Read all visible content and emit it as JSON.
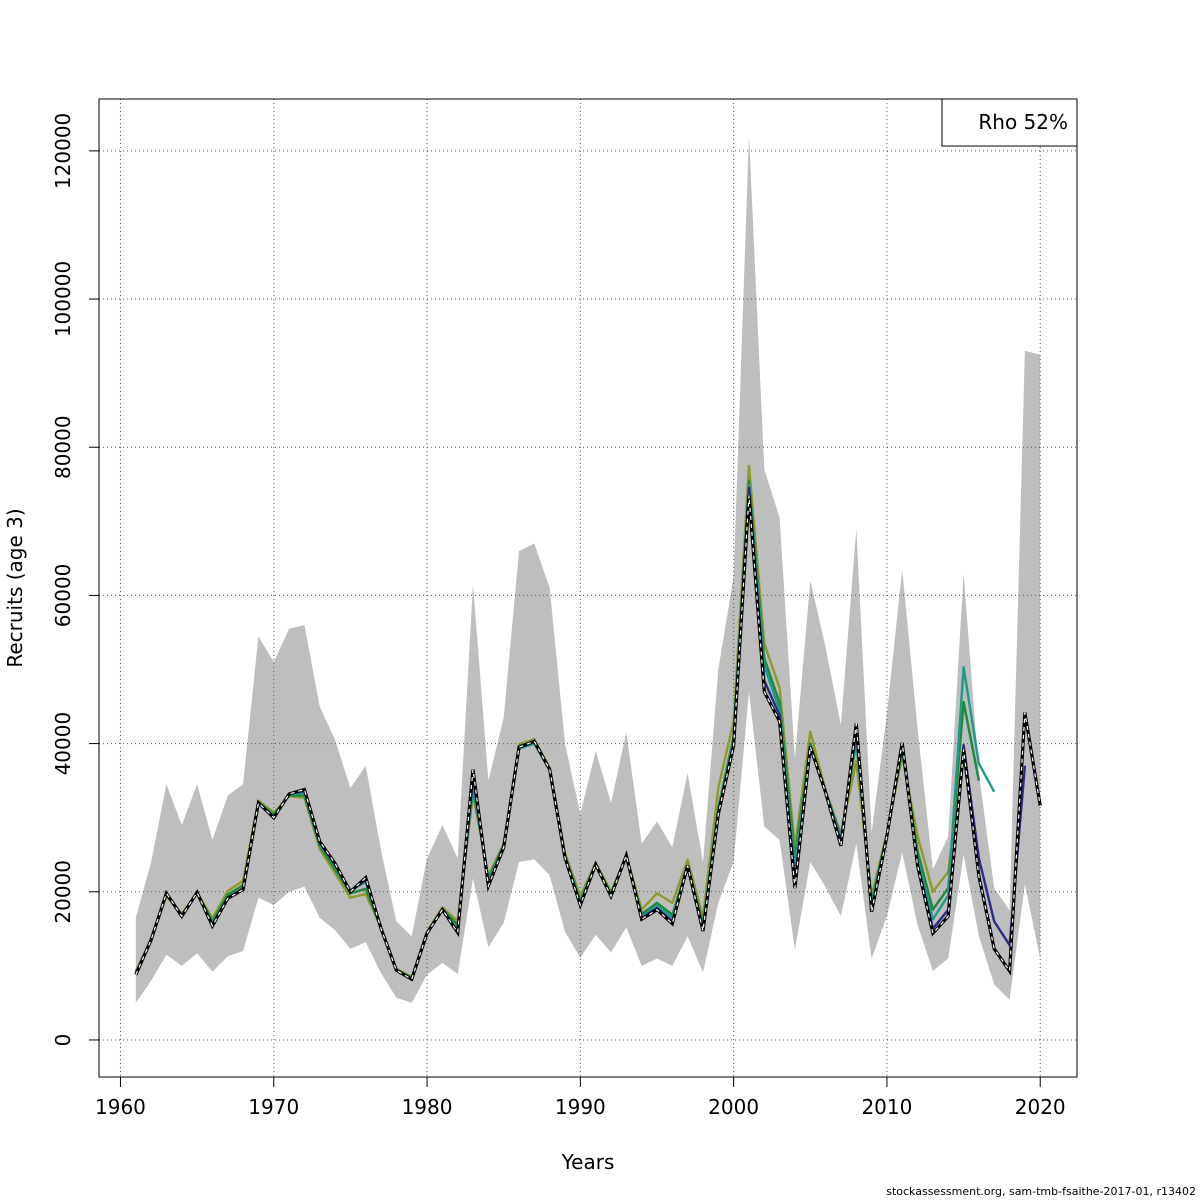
{
  "chart_data": {
    "type": "line",
    "xlabel": "Years",
    "ylabel": "Recruits (age 3)",
    "xlim": [
      1958.6,
      2022.4
    ],
    "ylim": [
      -5000,
      127000
    ],
    "x_ticks": [
      1960,
      1970,
      1980,
      1990,
      2000,
      2010,
      2020
    ],
    "y_ticks": [
      0,
      20000,
      40000,
      60000,
      80000,
      100000,
      120000
    ],
    "grid": true,
    "legend": {
      "position": "top-right",
      "text": "Rho 52%"
    },
    "colors": {
      "band": "#bebebe",
      "band_highlight": "#9ec3e0",
      "final": "#000000",
      "peel1": "#2a2a8c",
      "peel2": "#1e9a8a",
      "peel3": "#1b8a3a",
      "peel4": "#8f9a2a"
    },
    "confidence_band": {
      "x": [
        1961,
        1962,
        1963,
        1964,
        1965,
        1966,
        1967,
        1968,
        1969,
        1970,
        1971,
        1972,
        1973,
        1974,
        1975,
        1976,
        1977,
        1978,
        1979,
        1980,
        1981,
        1982,
        1983,
        1984,
        1985,
        1986,
        1987,
        1988,
        1989,
        1990,
        1991,
        1992,
        1993,
        1994,
        1995,
        1996,
        1997,
        1998,
        1999,
        2000,
        2001,
        2002,
        2003,
        2004,
        2005,
        2006,
        2007,
        2008,
        2009,
        2010,
        2011,
        2012,
        2013,
        2014,
        2015,
        2016,
        2017,
        2018,
        2019,
        2020
      ],
      "upper": [
        16500,
        24000,
        34500,
        29000,
        34500,
        27000,
        33000,
        34500,
        54500,
        51000,
        55500,
        56000,
        45000,
        40500,
        34000,
        37000,
        25500,
        16000,
        14000,
        24500,
        29000,
        24500,
        61500,
        35000,
        43500,
        66000,
        67000,
        61000,
        40000,
        30500,
        39000,
        32000,
        41500,
        26500,
        29500,
        26000,
        36000,
        24000,
        50000,
        62500,
        122000,
        77000,
        70500,
        38000,
        62000,
        53000,
        42500,
        69000,
        28000,
        44000,
        63500,
        42000,
        23000,
        27500,
        63000,
        36000,
        20500,
        17500,
        93000,
        92500
      ],
      "lower": [
        5000,
        8000,
        11500,
        10000,
        11700,
        9200,
        11300,
        12000,
        19200,
        18200,
        20000,
        20700,
        16500,
        14800,
        12300,
        13200,
        9000,
        5700,
        5000,
        8800,
        10400,
        8900,
        21800,
        12500,
        15800,
        24000,
        24400,
        22200,
        14600,
        11100,
        14200,
        11800,
        15200,
        10000,
        11000,
        10000,
        14000,
        9100,
        18500,
        24000,
        47000,
        28800,
        27000,
        12200,
        24000,
        20600,
        16700,
        26500,
        11000,
        16700,
        25300,
        15500,
        9300,
        11000,
        25000,
        14000,
        7500,
        5400,
        21000,
        11000
      ]
    },
    "series": [
      {
        "name": "",
        "style": "final",
        "x": [
          1961,
          1962,
          1963,
          1964,
          1965,
          1966,
          1967,
          1968,
          1969,
          1970,
          1971,
          1972,
          1973,
          1974,
          1975,
          1976,
          1977,
          1978,
          1979,
          1980,
          1981,
          1982,
          1983,
          1984,
          1985,
          1986,
          1987,
          1988,
          1989,
          1990,
          1991,
          1992,
          1993,
          1994,
          1995,
          1996,
          1997,
          1998,
          1999,
          2000,
          2001,
          2002,
          2003,
          2004,
          2005,
          2006,
          2007,
          2008,
          2009,
          2010,
          2011,
          2012,
          2013,
          2014,
          2015,
          2016,
          2017,
          2018,
          2019,
          2020
        ],
        "values": [
          8800,
          13500,
          19800,
          16700,
          19900,
          15400,
          19100,
          20300,
          32000,
          30000,
          33200,
          33800,
          26800,
          23800,
          20000,
          21900,
          15000,
          9400,
          8200,
          14400,
          17600,
          14500,
          36500,
          20800,
          26000,
          39500,
          40300,
          36500,
          24600,
          18200,
          23700,
          19400,
          24900,
          16300,
          17600,
          15700,
          23500,
          14700,
          30500,
          39700,
          73500,
          47000,
          43000,
          20500,
          39600,
          33400,
          26200,
          42700,
          17300,
          27500,
          40100,
          23500,
          14400,
          16700,
          39200,
          22100,
          12300,
          9300,
          44200,
          31600
        ]
      },
      {
        "name": "",
        "style": "peel1",
        "x": [
          1961,
          1962,
          1963,
          1964,
          1965,
          1966,
          1967,
          1968,
          1969,
          1970,
          1971,
          1972,
          1973,
          1974,
          1975,
          1976,
          1977,
          1978,
          1979,
          1980,
          1981,
          1982,
          1983,
          1984,
          1985,
          1986,
          1987,
          1988,
          1989,
          1990,
          1991,
          1992,
          1993,
          1994,
          1995,
          1996,
          1997,
          1998,
          1999,
          2000,
          2001,
          2002,
          2003,
          2004,
          2005,
          2006,
          2007,
          2008,
          2009,
          2010,
          2011,
          2012,
          2013,
          2014,
          2015,
          2016,
          2017,
          2018,
          2019
        ],
        "values": [
          8900,
          13500,
          19700,
          16700,
          19900,
          15600,
          19200,
          20400,
          32000,
          30100,
          33200,
          33600,
          26600,
          23600,
          20100,
          21600,
          15000,
          9400,
          8200,
          14400,
          17500,
          14600,
          35500,
          21000,
          26100,
          39600,
          40200,
          36500,
          24700,
          18300,
          23700,
          19500,
          24900,
          16500,
          17800,
          16000,
          23400,
          14900,
          30800,
          40000,
          74500,
          48500,
          43800,
          21500,
          39400,
          33500,
          26800,
          41800,
          17600,
          27600,
          39800,
          23800,
          15000,
          17600,
          39800,
          24500,
          16000,
          12800,
          37000
        ]
      },
      {
        "name": "",
        "style": "peel2",
        "x": [
          1961,
          1962,
          1963,
          1964,
          1965,
          1966,
          1967,
          1968,
          1969,
          1970,
          1971,
          1972,
          1973,
          1974,
          1975,
          1976,
          1977,
          1978,
          1979,
          1980,
          1981,
          1982,
          1983,
          1984,
          1985,
          1986,
          1987,
          1988,
          1989,
          1990,
          1991,
          1992,
          1993,
          1994,
          1995,
          1996,
          1997,
          1998,
          1999,
          2000,
          2001,
          2002,
          2003,
          2004,
          2005,
          2006,
          2007,
          2008,
          2009,
          2010,
          2011,
          2012,
          2013,
          2014,
          2015,
          2016,
          2017
        ],
        "values": [
          9000,
          13600,
          19700,
          16800,
          19900,
          15700,
          19300,
          20500,
          32100,
          30200,
          33100,
          33400,
          26400,
          23400,
          20200,
          21300,
          15100,
          9400,
          8300,
          14500,
          17600,
          15000,
          34500,
          21500,
          26200,
          39300,
          40000,
          36400,
          24800,
          18500,
          23700,
          19600,
          24900,
          16700,
          18100,
          16500,
          23300,
          15300,
          31000,
          40500,
          75000,
          50500,
          44500,
          23500,
          39300,
          33500,
          27200,
          40700,
          18200,
          27700,
          39500,
          24500,
          16300,
          19500,
          50300,
          37300,
          33500
        ]
      },
      {
        "name": "",
        "style": "peel3",
        "x": [
          1961,
          1962,
          1963,
          1964,
          1965,
          1966,
          1967,
          1968,
          1969,
          1970,
          1971,
          1972,
          1973,
          1974,
          1975,
          1976,
          1977,
          1978,
          1979,
          1980,
          1981,
          1982,
          1983,
          1984,
          1985,
          1986,
          1987,
          1988,
          1989,
          1990,
          1991,
          1992,
          1993,
          1994,
          1995,
          1996,
          1997,
          1998,
          1999,
          2000,
          2001,
          2002,
          2003,
          2004,
          2005,
          2006,
          2007,
          2008,
          2009,
          2010,
          2011,
          2012,
          2013,
          2014,
          2015,
          2016
        ],
        "values": [
          9100,
          13600,
          19600,
          16900,
          19900,
          16000,
          19600,
          20900,
          32100,
          30400,
          33000,
          33000,
          26200,
          23000,
          19800,
          20400,
          15100,
          9500,
          8400,
          14500,
          17700,
          15500,
          33900,
          21800,
          26300,
          39700,
          40200,
          36500,
          24900,
          18800,
          23800,
          19800,
          24900,
          17000,
          18500,
          16900,
          23500,
          15800,
          31300,
          41000,
          75500,
          51500,
          45500,
          24500,
          40000,
          33600,
          27500,
          40200,
          18600,
          27800,
          39000,
          25500,
          17600,
          20500,
          45600,
          35000
        ]
      },
      {
        "name": "",
        "style": "peel4",
        "x": [
          1961,
          1962,
          1963,
          1964,
          1965,
          1966,
          1967,
          1968,
          1969,
          1970,
          1971,
          1972,
          1973,
          1974,
          1975,
          1976,
          1977,
          1978,
          1979,
          1980,
          1981,
          1982,
          1983,
          1984,
          1985,
          1986,
          1987,
          1988,
          1989,
          1990,
          1991,
          1992,
          1993,
          1994,
          1995,
          1996,
          1997,
          1998,
          1999,
          2000,
          2001,
          2002,
          2003,
          2004,
          2005,
          2006,
          2007,
          2008,
          2009,
          2010,
          2011,
          2012,
          2013,
          2014,
          2015
        ],
        "values": [
          9300,
          13500,
          19400,
          17000,
          19900,
          16400,
          20100,
          21500,
          32300,
          30700,
          32900,
          32700,
          25800,
          22500,
          19200,
          19700,
          15200,
          9600,
          8500,
          14600,
          17900,
          16000,
          33200,
          22200,
          26500,
          39900,
          40600,
          36700,
          25200,
          19400,
          23900,
          20000,
          24900,
          17600,
          19800,
          18500,
          24300,
          16600,
          34000,
          43000,
          77500,
          53500,
          47500,
          26000,
          41600,
          33700,
          27800,
          37600,
          19400,
          27900,
          38400,
          27500,
          20000,
          22700,
          39600
        ]
      }
    ]
  },
  "footer": "stockassessment.org, sam-tmb-fsaithe-2017-01, r13402"
}
